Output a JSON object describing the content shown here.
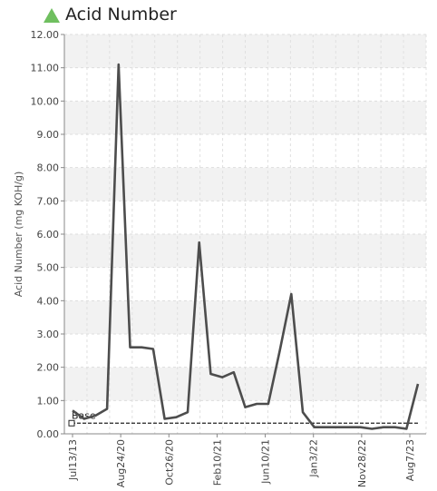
{
  "chart_data": {
    "type": "line",
    "title": "Acid Number",
    "ylabel": "Acid Number (mg KOH/g)",
    "xlabel": "",
    "ylim": [
      0,
      12
    ],
    "y_ticks": [
      "0.00",
      "1.00",
      "2.00",
      "3.00",
      "4.00",
      "5.00",
      "6.00",
      "7.00",
      "8.00",
      "9.00",
      "10.00",
      "11.00",
      "12.00"
    ],
    "x_tick_labels": [
      "Jul13/13",
      "Aug24/20",
      "Oct26/20",
      "Feb10/21",
      "Jun10/21",
      "Jan3/22",
      "Nov28/22",
      "Aug7/23"
    ],
    "series": [
      {
        "name": "",
        "color": "#4d4d4d",
        "values": [
          0.7,
          0.45,
          0.55,
          0.75,
          11.1,
          2.6,
          2.6,
          2.55,
          0.45,
          0.5,
          0.65,
          5.75,
          1.8,
          1.7,
          1.85,
          0.8,
          0.9,
          0.9,
          2.5,
          4.2,
          0.65,
          0.2,
          0.2,
          0.2,
          0.2,
          0.2,
          0.15,
          0.2,
          0.2,
          0.15,
          1.5
        ]
      }
    ],
    "reference_lines": [
      {
        "label": "Base",
        "value": 0.32,
        "color": "#222222"
      }
    ],
    "grid": true,
    "legend": "none"
  }
}
